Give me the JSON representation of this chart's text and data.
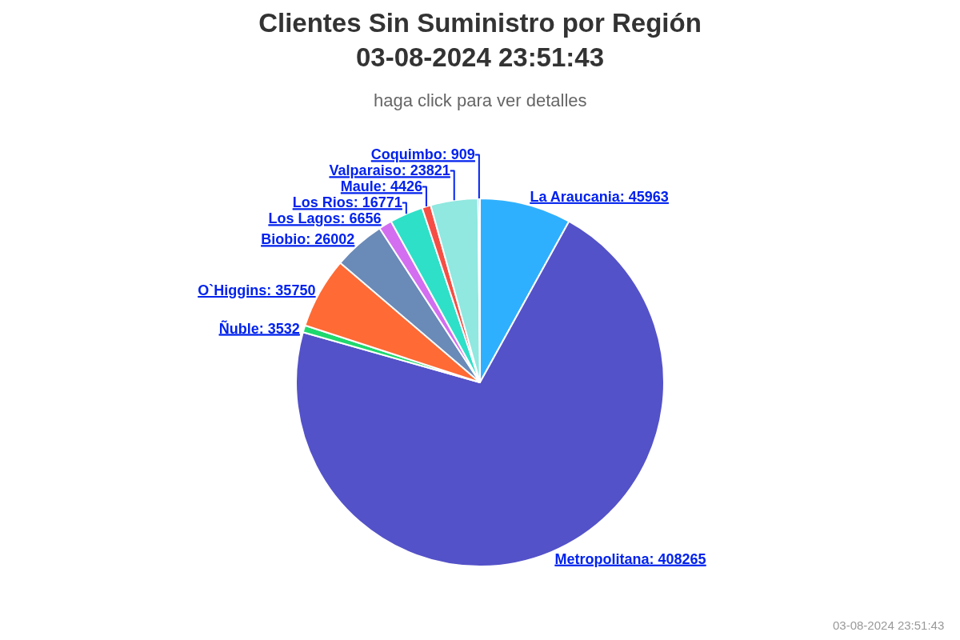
{
  "chart_data": {
    "type": "pie",
    "title": "Clientes Sin Suministro por Región\n03-08-2024 23:51:43",
    "subtitle": "haga click para ver detalles",
    "categories": [
      "La Araucania",
      "Metropolitana",
      "Ñuble",
      "O`Higgins",
      "Biobio",
      "Los Lagos",
      "Los Rios",
      "Maule",
      "Valparaiso",
      "Coquimbo"
    ],
    "values": [
      45963,
      408265,
      3532,
      35750,
      26002,
      6656,
      16771,
      4426,
      23821,
      909
    ],
    "colors": [
      "#2fb0ff",
      "#5452c8",
      "#1fd86e",
      "#ff6a35",
      "#6a8ab8",
      "#d36ef0",
      "#2ee0c8",
      "#f54f45",
      "#90e8e0",
      "#2aa8e8"
    ],
    "value_labels": [
      ": 45963",
      ": 408265",
      ": 3532",
      ": 35750",
      ": 26002",
      ": 6656",
      ": 16771",
      ": 4426",
      ": 23821",
      ": 909"
    ],
    "legend": false,
    "annotations": [
      "03-08-2024 23:51:43"
    ]
  }
}
